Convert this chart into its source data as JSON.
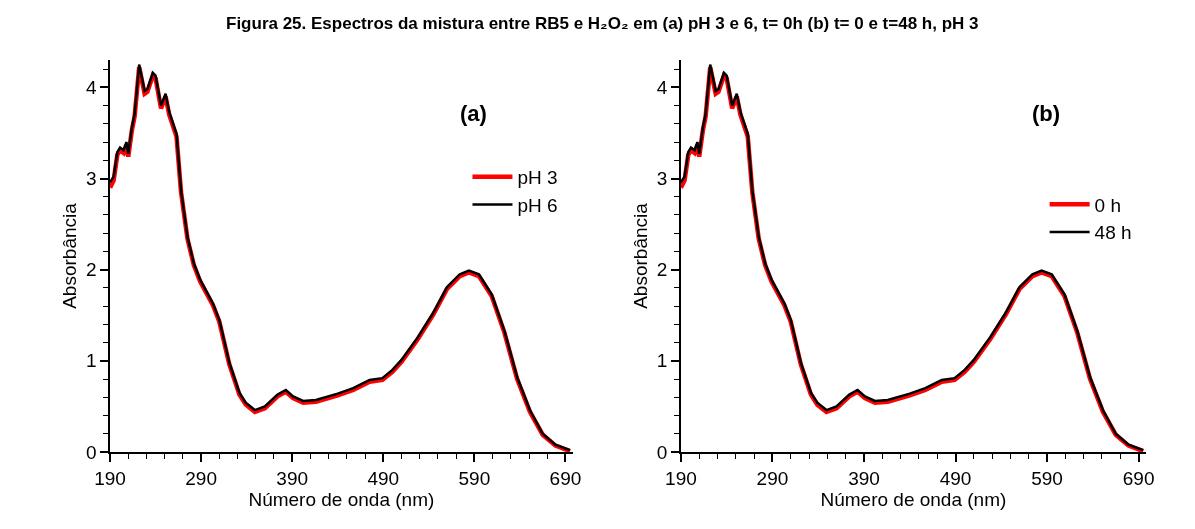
{
  "chart_data": [
    {
      "type": "line",
      "title": "Figura 25. Espectros da mistura entre RB5 e H₂O₂ em (a) pH 3 e 6, t= 0h (b) t= 0 e t=48 h, pH 3",
      "xlabel": "Número de onda (nm)",
      "ylabel": "Absorbância",
      "annotations": [
        "(a)"
      ],
      "x": [
        190,
        194,
        198,
        201,
        205,
        208,
        210,
        214,
        217,
        222,
        228,
        231,
        237,
        240,
        246,
        251,
        255,
        263,
        268,
        275,
        282,
        289,
        303,
        310,
        321,
        332,
        339,
        349,
        360,
        374,
        383,
        391,
        402,
        416,
        440,
        457,
        475,
        489,
        500,
        510,
        528,
        545,
        560,
        574,
        584,
        595,
        609,
        623,
        637,
        651,
        665,
        679,
        695
      ],
      "series": [
        {
          "name": "pH 3",
          "color": "#ff0000",
          "values": [
            2.9,
            2.98,
            3.26,
            3.31,
            3.28,
            3.37,
            3.24,
            3.53,
            3.68,
            4.22,
            3.93,
            3.95,
            4.13,
            4.1,
            3.77,
            3.9,
            3.7,
            3.46,
            2.85,
            2.34,
            2.05,
            1.87,
            1.61,
            1.43,
            0.96,
            0.63,
            0.52,
            0.44,
            0.48,
            0.61,
            0.66,
            0.59,
            0.54,
            0.55,
            0.62,
            0.68,
            0.77,
            0.79,
            0.88,
            0.99,
            1.24,
            1.51,
            1.79,
            1.93,
            1.97,
            1.93,
            1.71,
            1.31,
            0.8,
            0.44,
            0.19,
            0.07,
            0.01
          ]
        },
        {
          "name": "pH 6",
          "color": "#000000",
          "values": [
            2.96,
            3.02,
            3.29,
            3.34,
            3.31,
            3.4,
            3.27,
            3.56,
            3.71,
            4.25,
            3.96,
            3.98,
            4.16,
            4.13,
            3.8,
            3.93,
            3.73,
            3.49,
            2.87,
            2.36,
            2.07,
            1.89,
            1.63,
            1.45,
            0.98,
            0.65,
            0.54,
            0.46,
            0.5,
            0.63,
            0.68,
            0.61,
            0.56,
            0.57,
            0.64,
            0.7,
            0.79,
            0.81,
            0.9,
            1.01,
            1.26,
            1.53,
            1.81,
            1.95,
            1.99,
            1.95,
            1.73,
            1.33,
            0.82,
            0.46,
            0.2,
            0.08,
            0.02
          ]
        }
      ],
      "xlim": [
        190,
        698
      ],
      "xticks": [
        190,
        290,
        390,
        490,
        590,
        690
      ],
      "ylim": [
        0,
        4.3
      ],
      "yticks": [
        0,
        1,
        2,
        3,
        4
      ],
      "legend": "top right",
      "marker": "none",
      "line_style": "solid"
    },
    {
      "type": "line",
      "xlabel": "Número de onda (nm)",
      "ylabel": "Absorbância",
      "annotations": [
        "(b)"
      ],
      "x": [
        190,
        194,
        198,
        201,
        205,
        208,
        210,
        214,
        217,
        222,
        228,
        231,
        237,
        240,
        246,
        251,
        255,
        263,
        268,
        275,
        282,
        289,
        303,
        310,
        321,
        332,
        339,
        349,
        360,
        374,
        383,
        391,
        402,
        416,
        440,
        457,
        475,
        489,
        500,
        510,
        528,
        545,
        560,
        574,
        584,
        595,
        609,
        623,
        637,
        651,
        665,
        679,
        695
      ],
      "series": [
        {
          "name": "0 h",
          "color": "#ff0000",
          "values": [
            2.9,
            2.98,
            3.26,
            3.31,
            3.28,
            3.37,
            3.24,
            3.53,
            3.68,
            4.22,
            3.93,
            3.95,
            4.13,
            4.1,
            3.77,
            3.9,
            3.7,
            3.46,
            2.85,
            2.34,
            2.05,
            1.87,
            1.61,
            1.43,
            0.96,
            0.63,
            0.52,
            0.44,
            0.48,
            0.61,
            0.66,
            0.59,
            0.54,
            0.55,
            0.62,
            0.68,
            0.77,
            0.79,
            0.88,
            0.99,
            1.24,
            1.51,
            1.79,
            1.93,
            1.97,
            1.93,
            1.71,
            1.31,
            0.8,
            0.44,
            0.19,
            0.07,
            0.01
          ]
        },
        {
          "name": "48 h",
          "color": "#000000",
          "values": [
            2.96,
            3.02,
            3.29,
            3.34,
            3.31,
            3.4,
            3.27,
            3.56,
            3.71,
            4.25,
            3.96,
            3.98,
            4.16,
            4.13,
            3.8,
            3.93,
            3.73,
            3.49,
            2.87,
            2.36,
            2.07,
            1.89,
            1.63,
            1.45,
            0.98,
            0.65,
            0.54,
            0.46,
            0.5,
            0.63,
            0.68,
            0.61,
            0.56,
            0.57,
            0.64,
            0.7,
            0.79,
            0.81,
            0.9,
            1.01,
            1.26,
            1.53,
            1.81,
            1.95,
            1.99,
            1.95,
            1.73,
            1.33,
            0.82,
            0.46,
            0.2,
            0.08,
            0.02
          ]
        }
      ],
      "xlim": [
        190,
        698
      ],
      "xticks": [
        190,
        290,
        390,
        490,
        590,
        690
      ],
      "ylim": [
        0,
        4.3
      ],
      "yticks": [
        0,
        1,
        2,
        3,
        4
      ],
      "legend": "right",
      "marker": "none",
      "line_style": "solid"
    }
  ]
}
